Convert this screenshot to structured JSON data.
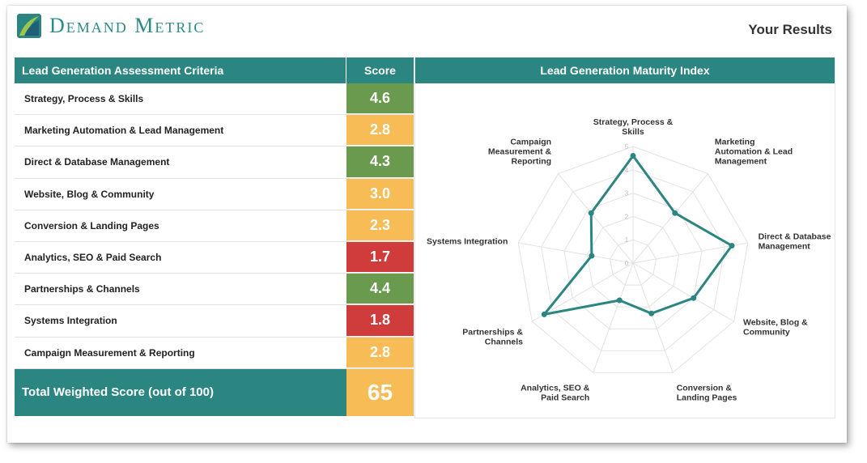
{
  "brand": {
    "name": "Demand Metric"
  },
  "header": {
    "right_title": "Your Results"
  },
  "table": {
    "criteria_header": "Lead Generation Assessment Criteria",
    "score_header": "Score",
    "rows": [
      {
        "label": "Strategy, Process & Skills",
        "score": "4.6",
        "color": "#6a9a4e"
      },
      {
        "label": "Marketing Automation & Lead Management",
        "score": "2.8",
        "color": "#f8bc56"
      },
      {
        "label": "Direct & Database Management",
        "score": "4.3",
        "color": "#6a9a4e"
      },
      {
        "label": "Website, Blog & Community",
        "score": "3.0",
        "color": "#f8bc56"
      },
      {
        "label": "Conversion & Landing Pages",
        "score": "2.3",
        "color": "#f8bc56"
      },
      {
        "label": "Analytics, SEO & Paid Search",
        "score": "1.7",
        "color": "#d03c3c"
      },
      {
        "label": "Partnerships & Channels",
        "score": "4.4",
        "color": "#6a9a4e"
      },
      {
        "label": "Systems Integration",
        "score": "1.8",
        "color": "#d03c3c"
      },
      {
        "label": "Campaign Measurement & Reporting",
        "score": "2.8",
        "color": "#f8bc56"
      }
    ],
    "total_label": "Total Weighted Score (out of 100)",
    "total_score": "65",
    "total_color": "#f8bc56"
  },
  "chart_panel": {
    "title": "Lead Generation Maturity Index"
  },
  "chart_data": {
    "type": "radar",
    "axes": [
      [
        "Strategy, Process &",
        "Skills"
      ],
      [
        "Marketing",
        "Automation & Lead",
        "Management"
      ],
      [
        "Direct & Database",
        "Management"
      ],
      [
        "Website, Blog &",
        "Community"
      ],
      [
        "Conversion &",
        "Landing Pages"
      ],
      [
        "Analytics, SEO &",
        "Paid Search"
      ],
      [
        "Partnerships &",
        "Channels"
      ],
      [
        "Systems Integration"
      ],
      [
        "Campaign",
        "Measurement &",
        "Reporting"
      ]
    ],
    "values": [
      4.6,
      2.8,
      4.3,
      3.0,
      2.3,
      1.7,
      4.4,
      1.8,
      2.8
    ],
    "ticks": [
      "0",
      "1",
      "2",
      "3",
      "4",
      "5"
    ],
    "range": [
      0,
      5
    ],
    "line_color": "#2b8682",
    "grid": true,
    "legend": "none"
  }
}
